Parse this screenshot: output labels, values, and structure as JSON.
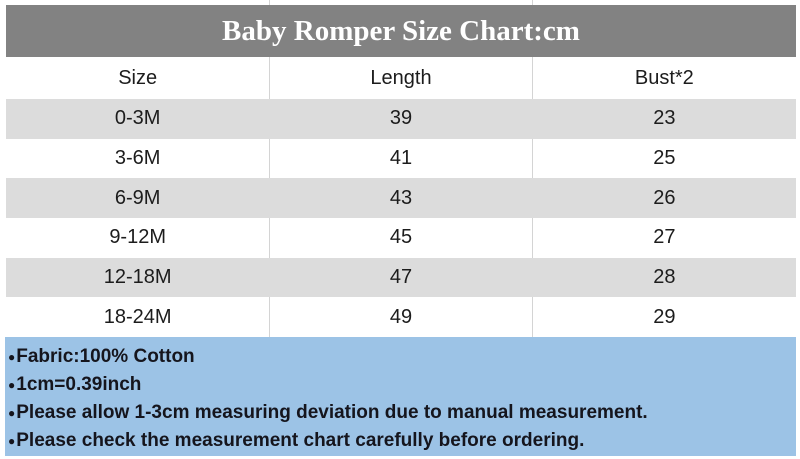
{
  "title": "Baby Romper Size Chart:cm",
  "table": {
    "columns": [
      "Size",
      "Length",
      "Bust*2"
    ],
    "rows": [
      {
        "size": "0-3M",
        "length": "39",
        "bust": "23"
      },
      {
        "size": "3-6M",
        "length": "41",
        "bust": "25"
      },
      {
        "size": "6-9M",
        "length": "43",
        "bust": "26"
      },
      {
        "size": "9-12M",
        "length": "45",
        "bust": "27"
      },
      {
        "size": "12-18M",
        "length": "47",
        "bust": "28"
      },
      {
        "size": "18-24M",
        "length": "49",
        "bust": "29"
      }
    ]
  },
  "notes": {
    "bullet": "●",
    "items": [
      "Fabric:100% Cotton",
      "1cm=0.39inch",
      "Please allow 1-3cm measuring deviation due to manual measurement.",
      "Please check the measurement chart carefully before ordering."
    ]
  },
  "colors": {
    "title_bg": "#828282",
    "title_text": "#ffffff",
    "alt_row_bg": "#dcdcdc",
    "notes_bg": "#9cc3e6",
    "body_text": "#1c1c1c",
    "notes_text": "#15151d",
    "grid_line": "#d4d4d4"
  },
  "chart_data": {
    "type": "table",
    "title": "Baby Romper Size Chart:cm",
    "unit": "cm",
    "columns": [
      "Size",
      "Length",
      "Bust*2"
    ],
    "rows": [
      [
        "0-3M",
        39,
        23
      ],
      [
        "3-6M",
        41,
        25
      ],
      [
        "6-9M",
        43,
        26
      ],
      [
        "9-12M",
        45,
        27
      ],
      [
        "12-18M",
        47,
        28
      ],
      [
        "18-24M",
        49,
        29
      ]
    ],
    "notes": [
      "Fabric:100% Cotton",
      "1cm=0.39inch",
      "Please allow 1-3cm measuring deviation due to manual measurement.",
      "Please check the measurement chart carefully before ordering."
    ],
    "layout": {
      "alternating_row_shading": true,
      "header_band_color": "#828282",
      "notes_band_color": "#9cc3e6"
    }
  }
}
